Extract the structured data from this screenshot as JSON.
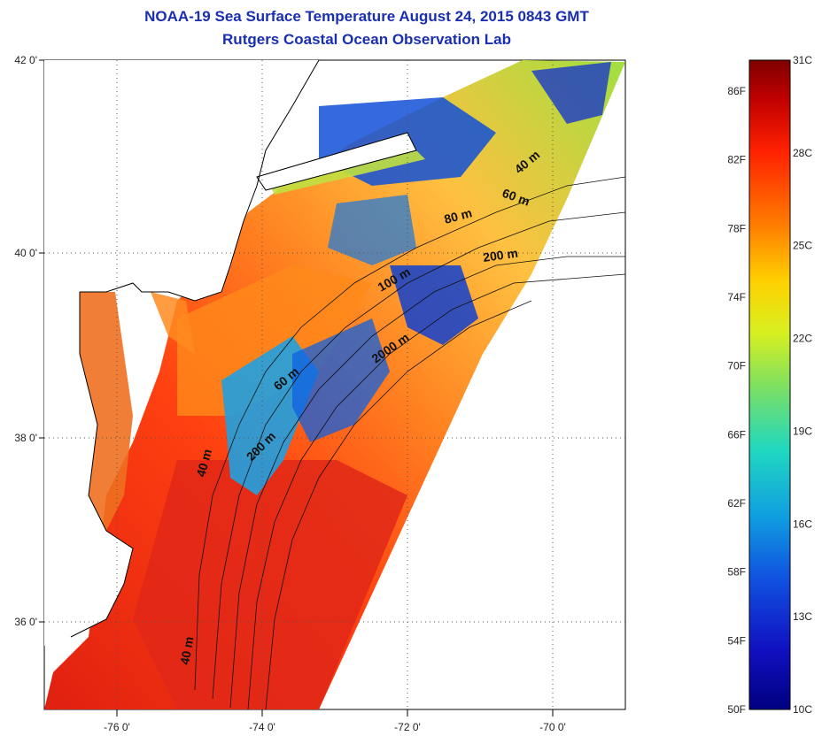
{
  "title": {
    "line1": "NOAA-19 Sea Surface Temperature August 24, 2015 0843 GMT",
    "line2": "Rutgers Coastal Ocean Observation Lab"
  },
  "map": {
    "lat_ticks": [
      "42 0'",
      "40 0'",
      "38 0'",
      "36 0'"
    ],
    "lon_ticks": [
      "-76 0'",
      "-74 0'",
      "-72 0'",
      "-70 0'"
    ],
    "contour_labels": [
      "40 m",
      "60 m",
      "80 m",
      "200 m",
      "100 m",
      "2000 m",
      "60 m",
      "200 m",
      "40 m",
      "40 m"
    ]
  },
  "colorbar": {
    "fahrenheit_labels": [
      "86F",
      "82F",
      "78F",
      "74F",
      "70F",
      "66F",
      "62F",
      "58F",
      "54F",
      "50F"
    ],
    "celsius_labels": [
      "31C",
      "28C",
      "25C",
      "22C",
      "19C",
      "16C",
      "13C",
      "10C"
    ],
    "colors": [
      "#7f0000",
      "#c00000",
      "#ff2000",
      "#ff7a00",
      "#ffd000",
      "#d8f020",
      "#80e060",
      "#20d8c0",
      "#10a0e0",
      "#1050e0",
      "#1010c0",
      "#000080"
    ]
  }
}
